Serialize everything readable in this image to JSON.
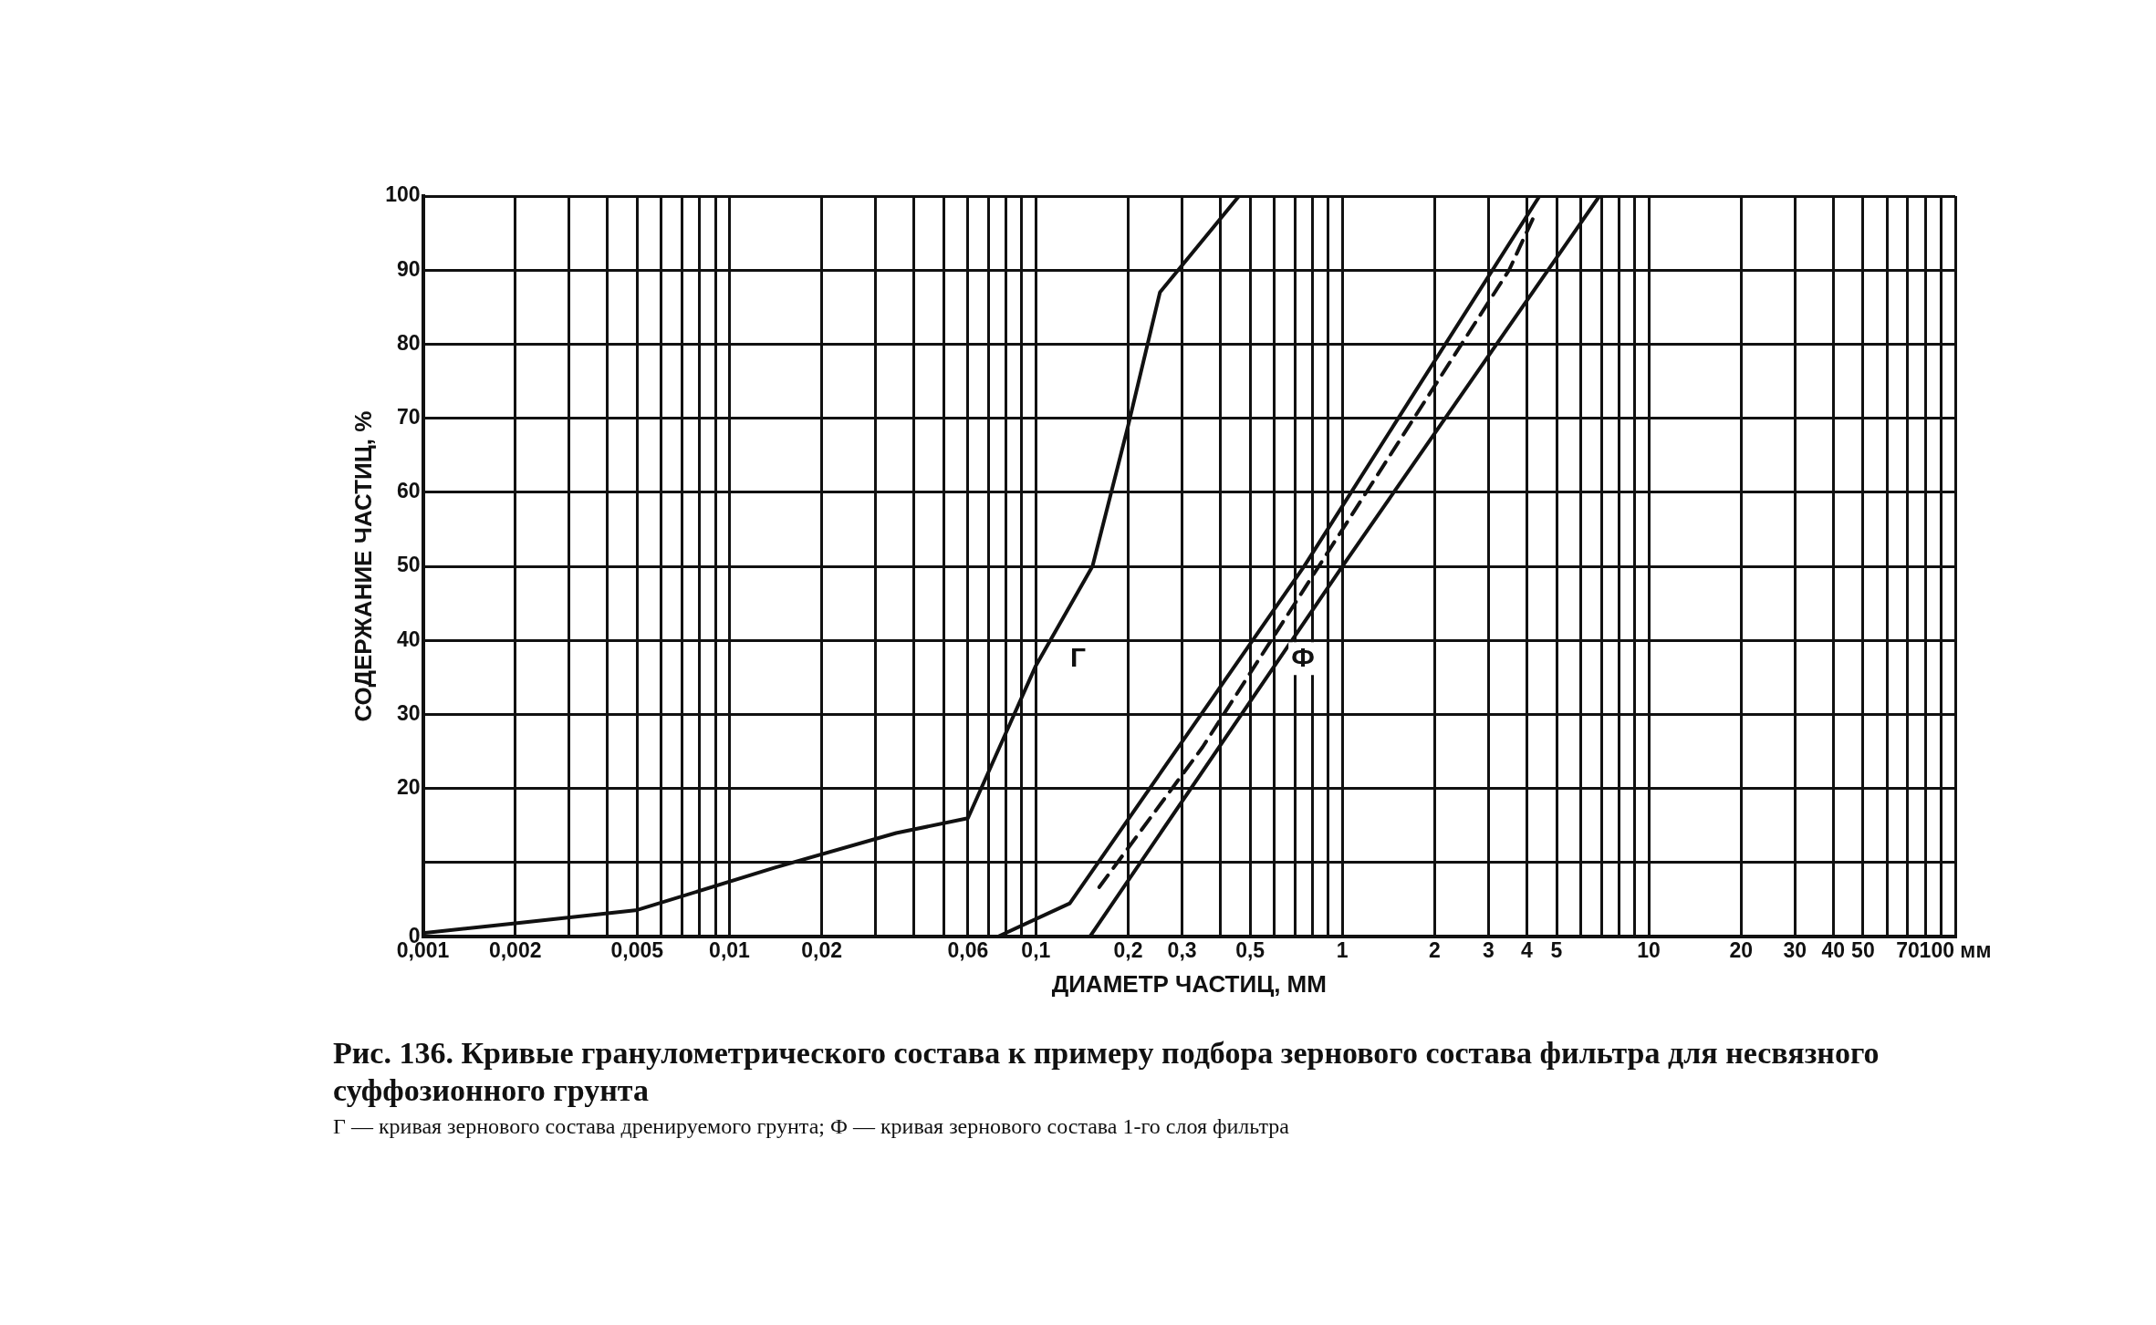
{
  "chart_data": {
    "type": "line",
    "title": "Рис. 136. Кривые гранулометрического состава к примеру подбора зернового состава фильтра для несвязного суффозионного грунта",
    "xlabel": "ДИАМЕТР ЧАСТИЦ, ММ",
    "ylabel": "СОДЕРЖАНИЕ ЧАСТИЦ, %",
    "log": "x",
    "xlim": [
      0.001,
      100
    ],
    "ylim": [
      0,
      100
    ],
    "xticks": [
      {
        "value": 0.001,
        "label": "0,001"
      },
      {
        "value": 0.002,
        "label": "0,002"
      },
      {
        "value": 0.003,
        "label": null
      },
      {
        "value": 0.004,
        "label": null
      },
      {
        "value": 0.005,
        "label": "0,005"
      },
      {
        "value": 0.006,
        "label": null
      },
      {
        "value": 0.007,
        "label": null
      },
      {
        "value": 0.008,
        "label": null
      },
      {
        "value": 0.009,
        "label": null
      },
      {
        "value": 0.01,
        "label": "0,01"
      },
      {
        "value": 0.02,
        "label": "0,02"
      },
      {
        "value": 0.03,
        "label": null
      },
      {
        "value": 0.04,
        "label": null
      },
      {
        "value": 0.05,
        "label": null
      },
      {
        "value": 0.06,
        "label": "0,06"
      },
      {
        "value": 0.07,
        "label": null
      },
      {
        "value": 0.08,
        "label": null
      },
      {
        "value": 0.09,
        "label": null
      },
      {
        "value": 0.1,
        "label": "0,1"
      },
      {
        "value": 0.2,
        "label": "0,2"
      },
      {
        "value": 0.3,
        "label": "0,3"
      },
      {
        "value": 0.4,
        "label": null
      },
      {
        "value": 0.5,
        "label": "0,5"
      },
      {
        "value": 0.6,
        "label": null
      },
      {
        "value": 0.7,
        "label": null
      },
      {
        "value": 0.8,
        "label": null
      },
      {
        "value": 0.9,
        "label": null
      },
      1,
      2,
      3,
      4,
      5,
      {
        "value": 6,
        "label": null
      },
      {
        "value": 7,
        "label": null
      },
      {
        "value": 8,
        "label": null
      },
      {
        "value": 9,
        "label": null
      },
      10,
      20,
      30,
      40,
      50,
      {
        "value": 60,
        "label": null
      },
      70,
      {
        "value": 80,
        "label": null
      },
      {
        "value": 90,
        "label": null
      },
      {
        "value": 100,
        "label": "100 мм"
      }
    ],
    "yticks": [
      0,
      {
        "value": 10,
        "label": null
      },
      20,
      30,
      40,
      50,
      60,
      70,
      80,
      90,
      100
    ],
    "grid": true,
    "legend": false,
    "marker": "none",
    "series": [
      {
        "name": "Г",
        "color": "#111111",
        "x": [
          0.001,
          0.002,
          0.005,
          0.014,
          0.035,
          0.06,
          0.1,
          0.153,
          0.2,
          0.254,
          0.46
        ],
        "values": [
          0.5,
          1.8,
          3.6,
          9.3,
          14,
          16,
          36.6,
          50,
          69,
          87,
          100
        ]
      },
      {
        "color": "#111111",
        "x": [
          0.075,
          0.129,
          0.75,
          4.4
        ],
        "values": [
          0,
          4.5,
          50,
          100
        ]
      },
      {
        "color": "#111111",
        "x": [
          0.15,
          1.0,
          6.9
        ],
        "values": [
          0,
          50,
          100
        ]
      },
      {
        "name": "Ф",
        "color": "#111111",
        "line_style": "dashed",
        "x": [
          0.161,
          0.35,
          3.5,
          4.3
        ],
        "values": [
          6.7,
          25.6,
          90,
          98
        ]
      }
    ],
    "annotations": [
      "Г — кривая зернового состава дренируемого грунта; Ф — кривая зернового состава 1-го слоя фильтра"
    ]
  }
}
